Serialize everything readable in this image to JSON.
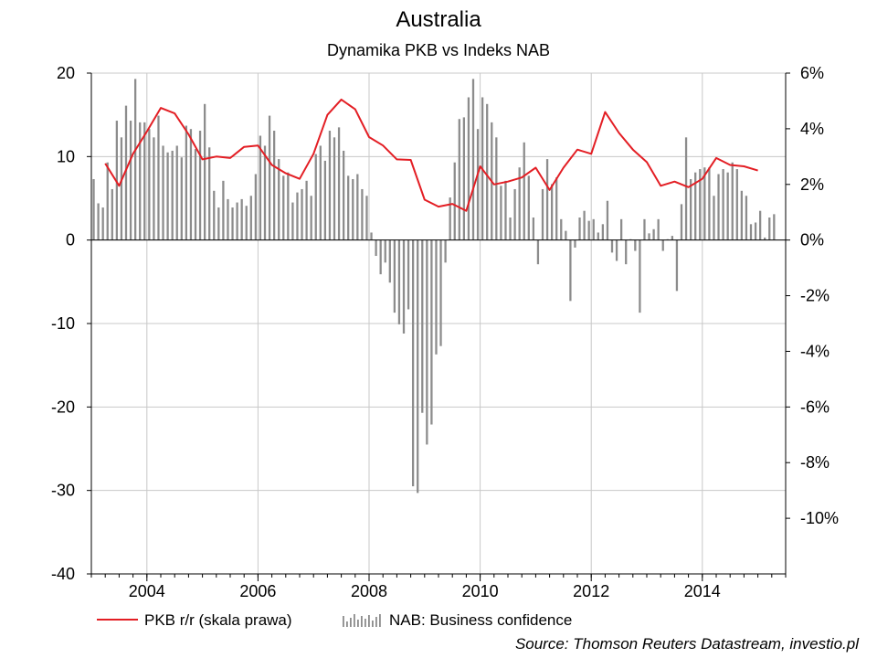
{
  "chart_data": {
    "type": "bar+line",
    "title": "Australia",
    "subtitle": "Dynamika PKB vs Indeks NAB",
    "source": "Source: Thomson Reuters Datastream, investio.pl",
    "x_axis": {
      "range": [
        2003.0,
        2015.5
      ],
      "ticks": [
        2004,
        2006,
        2008,
        2010,
        2012,
        2014
      ],
      "tick_labels": [
        "2004",
        "2006",
        "2008",
        "2010",
        "2012",
        "2014"
      ]
    },
    "y_left": {
      "range": [
        -40,
        20
      ],
      "ticks": [
        20,
        10,
        0,
        -10,
        -20,
        -30,
        -40
      ],
      "tick_labels": [
        "20",
        "10",
        "0",
        "-10",
        "-20",
        "-30",
        "-40"
      ]
    },
    "y_right": {
      "range": [
        -12,
        6
      ],
      "ticks": [
        6,
        4,
        2,
        0,
        -2,
        -4,
        -6,
        -8,
        -10
      ],
      "tick_labels": [
        "6%",
        "4%",
        "2%",
        "0%",
        "-2%",
        "-4%",
        "-6%",
        "-8%",
        "-10%"
      ]
    },
    "grid": true,
    "legend": {
      "placement": "bottom",
      "entries": [
        "PKB r/r (skala prawa)",
        "NAB: Business confidence"
      ]
    },
    "bars": {
      "name": "NAB: Business confidence",
      "axis": "left",
      "color": "#8c8c8c",
      "x_start": 2003.0,
      "step_months": 1,
      "values": [
        7.3,
        4.4,
        3.9,
        9.3,
        6.1,
        14.3,
        12.3,
        16.1,
        14.3,
        19.3,
        14.1,
        14.1,
        13.3,
        12.3,
        14.9,
        11.3,
        10.5,
        10.7,
        11.3,
        9.9,
        13.7,
        13.3,
        10.9,
        13.1,
        16.3,
        11.1,
        5.9,
        3.9,
        7.1,
        4.9,
        3.9,
        4.5,
        4.9,
        4.1,
        5.3,
        7.9,
        12.5,
        11.3,
        14.9,
        13.1,
        9.7,
        7.7,
        8.1,
        4.5,
        5.7,
        6.1,
        7.1,
        5.3,
        10.3,
        11.3,
        9.5,
        13.1,
        12.3,
        13.5,
        10.7,
        7.7,
        7.3,
        7.9,
        6.1,
        5.3,
        0.9,
        -1.9,
        -4.1,
        -2.7,
        -5.1,
        -8.7,
        -10.1,
        -11.2,
        -8.3,
        -29.5,
        -30.3,
        -20.7,
        -24.5,
        -22.1,
        -13.7,
        -12.7,
        -2.7,
        5.1,
        9.3,
        14.5,
        14.7,
        17.1,
        19.3,
        13.3,
        17.1,
        16.3,
        14.1,
        12.3,
        6.5,
        7.1,
        2.7,
        6.1,
        8.7,
        11.7,
        7.7,
        2.7,
        -2.9,
        6.1,
        9.7,
        6.7,
        7.5,
        2.5,
        1.1,
        -7.3,
        -0.9,
        2.7,
        3.5,
        2.3,
        2.5,
        0.9,
        1.9,
        4.7,
        -1.5,
        -2.5,
        2.5,
        -2.9,
        0.1,
        -1.3,
        -8.7,
        2.5,
        0.8,
        1.3,
        2.5,
        -1.3,
        0.1,
        0.5,
        -6.1,
        4.3,
        12.3,
        7.3,
        8.1,
        8.5,
        8.7,
        8.7,
        5.3,
        7.9,
        8.5,
        8.1,
        9.3,
        8.5,
        5.9,
        5.3,
        1.9,
        2.1,
        3.5,
        0.3,
        2.7,
        3.1
      ]
    },
    "line": {
      "name": "PKB r/r (skala prawa)",
      "axis": "right",
      "color": "#e31e24",
      "x": [
        2003.25,
        2003.5,
        2003.75,
        2004.0,
        2004.25,
        2004.5,
        2004.75,
        2005.0,
        2005.25,
        2005.5,
        2005.75,
        2006.0,
        2006.25,
        2006.5,
        2006.75,
        2007.0,
        2007.25,
        2007.5,
        2007.75,
        2008.0,
        2008.25,
        2008.5,
        2008.75,
        2009.0,
        2009.25,
        2009.5,
        2009.75,
        2010.0,
        2010.25,
        2010.5,
        2010.75,
        2011.0,
        2011.25,
        2011.5,
        2011.75,
        2012.0,
        2012.25,
        2012.5,
        2012.75,
        2013.0,
        2013.25,
        2013.5,
        2013.75,
        2014.0,
        2014.25,
        2014.5,
        2014.75,
        2015.0
      ],
      "values": [
        2.75,
        1.95,
        3.1,
        3.9,
        4.75,
        4.55,
        3.8,
        2.9,
        3.0,
        2.95,
        3.35,
        3.4,
        2.7,
        2.4,
        2.2,
        3.1,
        4.5,
        5.05,
        4.7,
        3.7,
        3.4,
        2.9,
        2.88,
        1.45,
        1.2,
        1.3,
        1.05,
        2.65,
        2.0,
        2.1,
        2.25,
        2.6,
        1.8,
        2.6,
        3.25,
        3.1,
        4.6,
        3.85,
        3.25,
        2.8,
        1.95,
        2.1,
        1.9,
        2.2,
        2.95,
        2.7,
        2.65,
        2.5
      ]
    }
  }
}
